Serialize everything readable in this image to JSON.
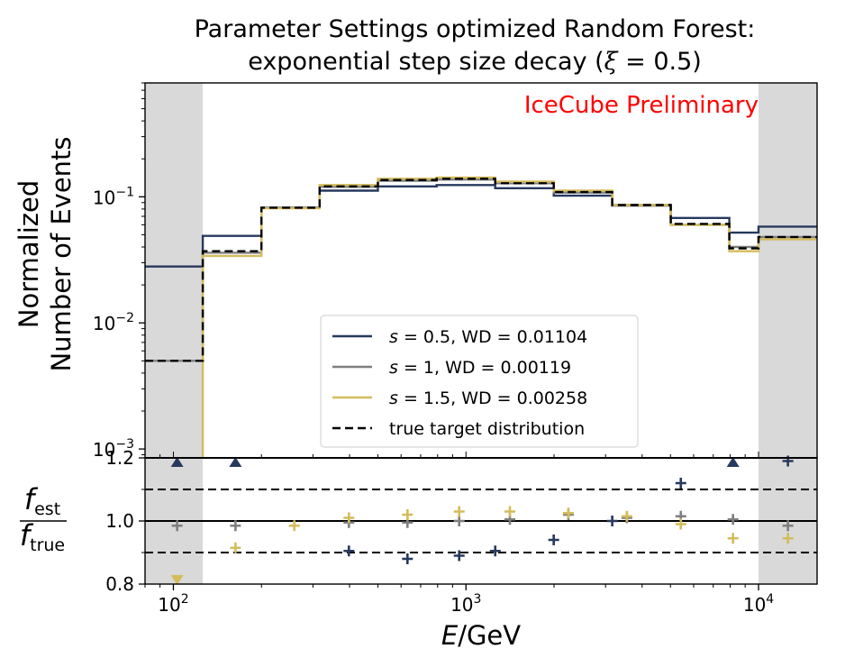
{
  "chart_data": [
    {
      "type": "line",
      "panel": "main",
      "title_line1": "Parameter Settings optimized Random Forest:",
      "title_line2_prefix": "exponential step size decay (",
      "title_line2_symbol": "ξ",
      "title_line2_suffix": " = 0.5)",
      "watermark": "IceCube Preliminary",
      "ylabel_line1": "Normalized",
      "ylabel_line2": "Number of Events",
      "yscale": "log",
      "ylim": [
        0.00085,
        0.8
      ],
      "y_ticks": [
        {
          "value": 0.001,
          "base": "10",
          "exp": "−3"
        },
        {
          "value": 0.01,
          "base": "10",
          "exp": "−2"
        },
        {
          "value": 0.1,
          "base": "10",
          "exp": "−1"
        }
      ],
      "bin_edges_gev": [
        80,
        126,
        200,
        316,
        500,
        794,
        1259,
        1995,
        3162,
        5012,
        7943,
        10000,
        15850
      ],
      "shaded_regions_gev": [
        [
          80,
          126
        ],
        [
          10000,
          15850
        ]
      ],
      "series": [
        {
          "name_var": "s",
          "name_value": " = 0.5, WD = 0.01104",
          "color": "#27395e",
          "dash": "solid",
          "values": [
            0.028,
            0.049,
            0.082,
            0.112,
            0.121,
            0.124,
            0.117,
            0.102,
            0.086,
            0.068,
            0.052,
            0.058
          ]
        },
        {
          "name_var": "s",
          "name_value": " = 1, WD = 0.00119",
          "color": "#7f7f7f",
          "dash": "solid",
          "values": [
            0.005,
            0.036,
            0.082,
            0.12,
            0.134,
            0.137,
            0.128,
            0.108,
            0.085,
            0.06,
            0.04,
            0.048
          ]
        },
        {
          "name_var": "s",
          "name_value": " = 1.5, WD = 0.00258",
          "color": "#d4bc5c",
          "dash": "solid",
          "values": [
            0.0001,
            0.034,
            0.081,
            0.124,
            0.139,
            0.142,
            0.132,
            0.112,
            0.086,
            0.06,
            0.037,
            0.046
          ]
        },
        {
          "name_text": "true target distribution",
          "color": "#000000",
          "dash": "dashed",
          "values": [
            0.005,
            0.037,
            0.082,
            0.121,
            0.136,
            0.139,
            0.128,
            0.109,
            0.086,
            0.061,
            0.039,
            0.048
          ]
        }
      ]
    },
    {
      "type": "scatter",
      "panel": "ratio",
      "ylabel_num": "f",
      "ylabel_num_sub": "est",
      "ylabel_den": "f",
      "ylabel_den_sub": "true",
      "xlabel_var": "E",
      "xlabel_unit": "/GeV",
      "xscale": "log",
      "xlim": [
        80,
        15850
      ],
      "x_ticks": [
        {
          "value": 100,
          "base": "10",
          "exp": "2"
        },
        {
          "value": 1000,
          "base": "10",
          "exp": "3"
        },
        {
          "value": 10000,
          "base": "10",
          "exp": "4"
        }
      ],
      "ylim": [
        0.8,
        1.2
      ],
      "y_ticks": [
        "0.8",
        "1.0",
        "1.2"
      ],
      "y_tick_values": [
        0.8,
        1.0,
        1.2
      ],
      "reference_lines": [
        {
          "y": 1.0,
          "style": "solid"
        },
        {
          "y": 1.1,
          "style": "dashed"
        },
        {
          "y": 0.9,
          "style": "dashed"
        },
        {
          "y": 1.2,
          "style": "solid"
        }
      ],
      "series": [
        {
          "name": "s = 0.5",
          "color": "#27395e",
          "marker": "+",
          "points": [
            [
              1259,
              0.905
            ],
            [
              1995,
              0.94
            ],
            [
              3162,
              1.0
            ],
            [
              5425,
              1.12
            ],
            [
              12600,
              1.19
            ],
            [
              398,
              0.905
            ],
            [
              631,
              0.88
            ],
            [
              948,
              0.89
            ]
          ],
          "out_of_range_up": [
            103,
            163,
            8180
          ]
        },
        {
          "name": "s = 1",
          "color": "#7f7f7f",
          "marker": "+",
          "points": [
            [
              103,
              0.985
            ],
            [
              163,
              0.985
            ],
            [
              398,
              0.995
            ],
            [
              631,
              0.995
            ],
            [
              948,
              1.0
            ],
            [
              1413,
              1.005
            ],
            [
              2239,
              1.02
            ],
            [
              3548,
              1.01
            ],
            [
              5425,
              1.015
            ],
            [
              8180,
              1.005
            ],
            [
              12600,
              0.985
            ]
          ]
        },
        {
          "name": "s = 1.5",
          "color": "#d4bc5c",
          "marker": "+",
          "points": [
            [
              163,
              0.915
            ],
            [
              259,
              0.985
            ],
            [
              398,
              1.01
            ],
            [
              631,
              1.02
            ],
            [
              948,
              1.03
            ],
            [
              1413,
              1.03
            ],
            [
              2239,
              1.025
            ],
            [
              3548,
              1.015
            ],
            [
              5425,
              0.99
            ],
            [
              8180,
              0.945
            ],
            [
              12600,
              0.945
            ]
          ],
          "out_of_range_down": [
            103
          ]
        }
      ]
    }
  ]
}
